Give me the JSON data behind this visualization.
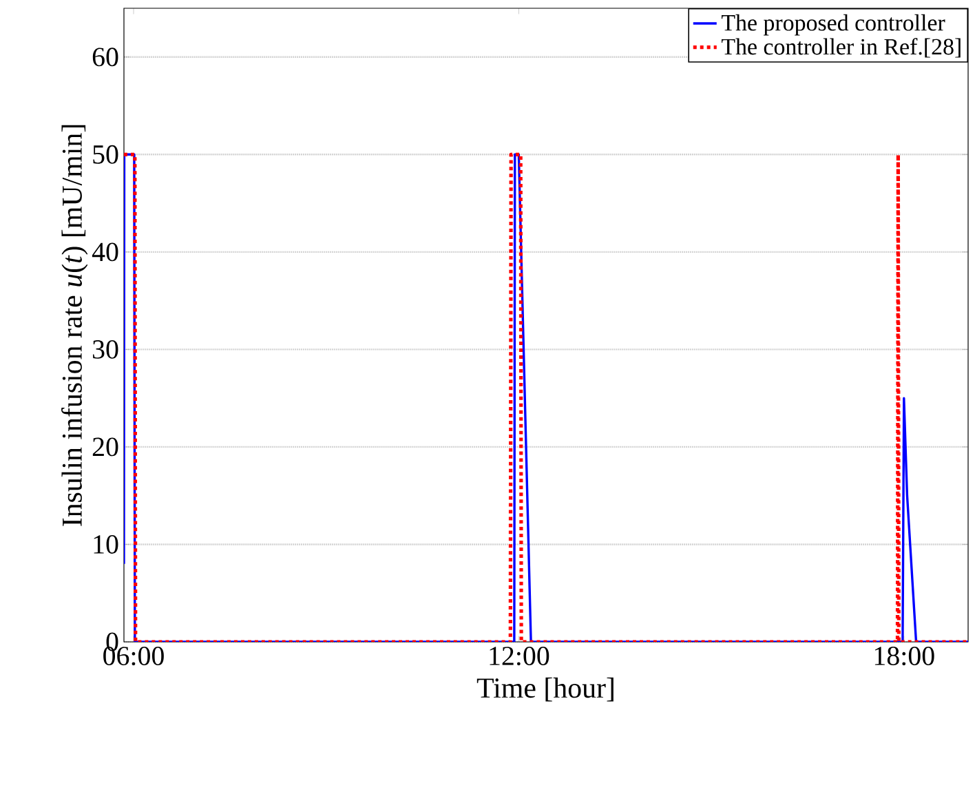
{
  "chart_data": {
    "type": "line",
    "xlabel": "Time [hour]",
    "ylabel": "Insulin infusion rate *u*(*t*) [mU/min]",
    "xlim": [
      5.85,
      19.0
    ],
    "ylim": [
      0,
      65
    ],
    "xticks": [
      {
        "value": 6,
        "label": "06:00"
      },
      {
        "value": 12,
        "label": "12:00"
      },
      {
        "value": 18,
        "label": "18:00"
      }
    ],
    "yticks": [
      0,
      10,
      20,
      30,
      40,
      50,
      60
    ],
    "grid": "y",
    "legend": "top right",
    "series": [
      {
        "name": "The proposed controller",
        "color": "#0000ff",
        "line_style": "solid",
        "x": [
          5.85,
          5.855,
          6.01,
          6.02,
          11.93,
          11.94,
          12.0,
          12.19,
          17.98,
          18.0,
          18.05,
          18.19,
          19.0
        ],
        "values": [
          8,
          50,
          50,
          0,
          0,
          50,
          50,
          0,
          0,
          25,
          15,
          0,
          0
        ]
      },
      {
        "name": "The controller in Ref.[28]",
        "color": "#ff0000",
        "line_style": "dotted",
        "x": [
          5.85,
          6.02,
          6.03,
          11.87,
          11.88,
          12.03,
          12.04,
          17.9,
          17.91,
          17.92,
          19.0
        ],
        "values": [
          50,
          50,
          0,
          0,
          50,
          50,
          0,
          0,
          50,
          0,
          0
        ]
      }
    ]
  }
}
